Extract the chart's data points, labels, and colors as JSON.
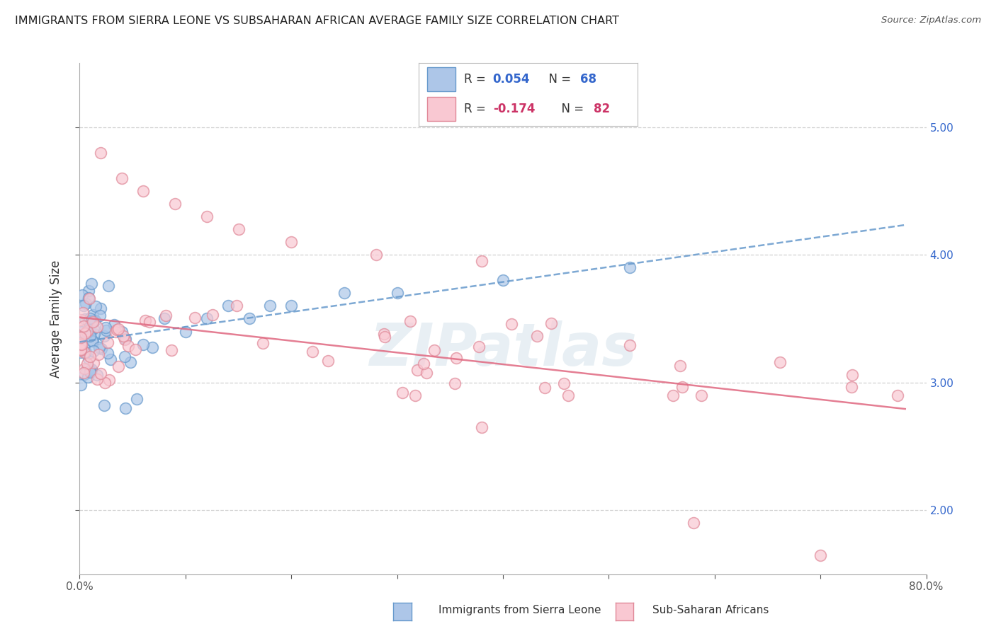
{
  "title": "IMMIGRANTS FROM SIERRA LEONE VS SUBSAHARAN AFRICAN AVERAGE FAMILY SIZE CORRELATION CHART",
  "source": "Source: ZipAtlas.com",
  "ylabel": "Average Family Size",
  "xlim": [
    0.0,
    0.8
  ],
  "ylim": [
    1.5,
    5.5
  ],
  "yticks": [
    2.0,
    3.0,
    4.0,
    5.0
  ],
  "xtick_vals": [
    0.0,
    0.1,
    0.2,
    0.3,
    0.4,
    0.5,
    0.6,
    0.7,
    0.8
  ],
  "xtick_labels_edge": [
    "0.0%",
    "",
    "",
    "",
    "",
    "",
    "",
    "",
    "80.0%"
  ],
  "legend_blue_r_val": "0.054",
  "legend_blue_n_val": "68",
  "legend_pink_r_val": "-0.174",
  "legend_pink_n_val": "82",
  "blue_face": "#adc6e8",
  "blue_edge": "#6699cc",
  "pink_face": "#f9c8d2",
  "pink_edge": "#e08898",
  "blue_line_color": "#6699cc",
  "pink_line_color": "#e06880",
  "watermark": "ZIPatlas",
  "grid_color": "#cccccc",
  "background": "#ffffff"
}
